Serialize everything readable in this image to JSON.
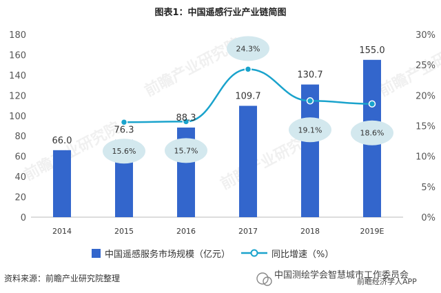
{
  "chart_data": {
    "type": "bar",
    "title": "图表1：中国遥感行业产业链简图",
    "categories": [
      "2014",
      "2015",
      "2016",
      "2017",
      "2018",
      "2019E"
    ],
    "series": [
      {
        "name": "中国遥感服务市场规模（亿元）",
        "type": "bar",
        "axis": "left",
        "values": [
          66.0,
          76.3,
          88.3,
          109.7,
          130.7,
          155.0
        ],
        "labels": [
          "66.0",
          "76.3",
          "88.3",
          "109.7",
          "130.7",
          "155.0"
        ],
        "color": "#3366cc"
      },
      {
        "name": "同比增速（%）",
        "type": "line",
        "axis": "right",
        "x": [
          "2015",
          "2016",
          "2017",
          "2018",
          "2019E"
        ],
        "values": [
          15.6,
          15.7,
          24.3,
          19.1,
          18.6
        ],
        "labels": [
          "15.6%",
          "15.7%",
          "24.3%",
          "19.1%",
          "18.6%"
        ],
        "color": "#1aa3cc"
      }
    ],
    "y_left": {
      "ylim": [
        0,
        180
      ],
      "ticks": [
        "0",
        "20",
        "40",
        "60",
        "80",
        "100",
        "120",
        "140",
        "160",
        "180"
      ]
    },
    "y_right": {
      "ylim": [
        0,
        30
      ],
      "ticks": [
        "0%",
        "5%",
        "10%",
        "15%",
        "20%",
        "25%",
        "30%"
      ]
    },
    "grid": false,
    "legend_position": "bottom"
  },
  "source": "资料来源：前瞻产业研究院整理",
  "watermark": {
    "channel": "中国测绘学会智慧城市工作委员会",
    "app": "前瞻经济学人APP",
    "logo_text": "前瞻产业研究院"
  },
  "colors": {
    "bubble": "#d3e8ee",
    "axis": "#bbbbbb"
  }
}
